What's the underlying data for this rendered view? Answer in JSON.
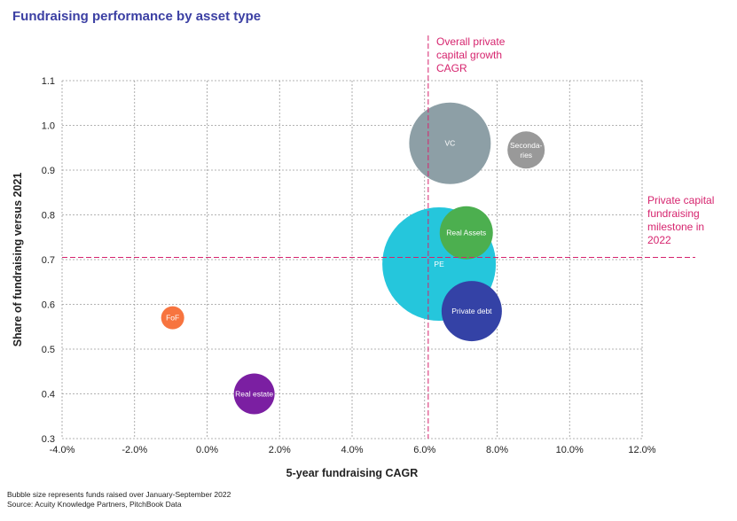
{
  "title": "Fundraising performance by asset type",
  "footnotes": {
    "line1": "Bubble size represents funds raised over January-September 2022",
    "line2": "Source: Acuity Knowledge Partners, PitchBook Data"
  },
  "annotations": {
    "vertical": [
      "Overall private",
      "capital growth",
      "CAGR"
    ],
    "horizontal": [
      "Private capital",
      "fundraising",
      "milestone in",
      "2022"
    ]
  },
  "colors": {
    "title": "#3b3fa3",
    "reference_line": "#d6246e",
    "grid": "#9a9a9a"
  },
  "chart_data": {
    "type": "scatter",
    "title": "Fundraising performance by asset type",
    "xlabel": "5-year fundraising CAGR",
    "ylabel": "Share of fundraising versus 2021",
    "xlim": [
      -4.0,
      12.0
    ],
    "ylim": [
      0.3,
      1.1
    ],
    "x_ticks": [
      -4,
      -2,
      0,
      2,
      4,
      6,
      8,
      10,
      12
    ],
    "x_tick_labels": [
      "-4.0%",
      "-2.0%",
      "0.0%",
      "2.0%",
      "4.0%",
      "6.0%",
      "8.0%",
      "10.0%",
      "12.0%"
    ],
    "y_ticks": [
      0.3,
      0.4,
      0.5,
      0.6,
      0.7,
      0.8,
      0.9,
      1.0,
      1.1
    ],
    "y_tick_labels": [
      "0.3",
      "0.4",
      "0.5",
      "0.6",
      "0.7",
      "0.8",
      "0.9",
      "1.0",
      "1.1"
    ],
    "grid": true,
    "reference_lines": {
      "x": 6.1,
      "y": 0.705
    },
    "bubbles": [
      {
        "name": "PE",
        "label": "PE",
        "x": 6.4,
        "y": 0.69,
        "size": 64,
        "color": "#25c6dc"
      },
      {
        "name": "VC",
        "label": "VC",
        "x": 6.7,
        "y": 0.96,
        "size": 46,
        "color": "#8d9fa6"
      },
      {
        "name": "Secondaries",
        "label": [
          "Seconda-",
          "ries"
        ],
        "x": 8.8,
        "y": 0.945,
        "size": 21,
        "color": "#999999"
      },
      {
        "name": "Real Assets",
        "label": "Real Assets",
        "x": 7.15,
        "y": 0.76,
        "size": 30,
        "color": "#4caf4f"
      },
      {
        "name": "Private debt",
        "label": "Private debt",
        "x": 7.3,
        "y": 0.585,
        "size": 34,
        "color": "#3442a6"
      },
      {
        "name": "FoF",
        "label": "FoF",
        "x": -0.95,
        "y": 0.57,
        "size": 13,
        "color": "#f7743f"
      },
      {
        "name": "Real estate",
        "label": "Real estate",
        "x": 1.3,
        "y": 0.4,
        "size": 23,
        "color": "#7b1fa2"
      }
    ]
  }
}
